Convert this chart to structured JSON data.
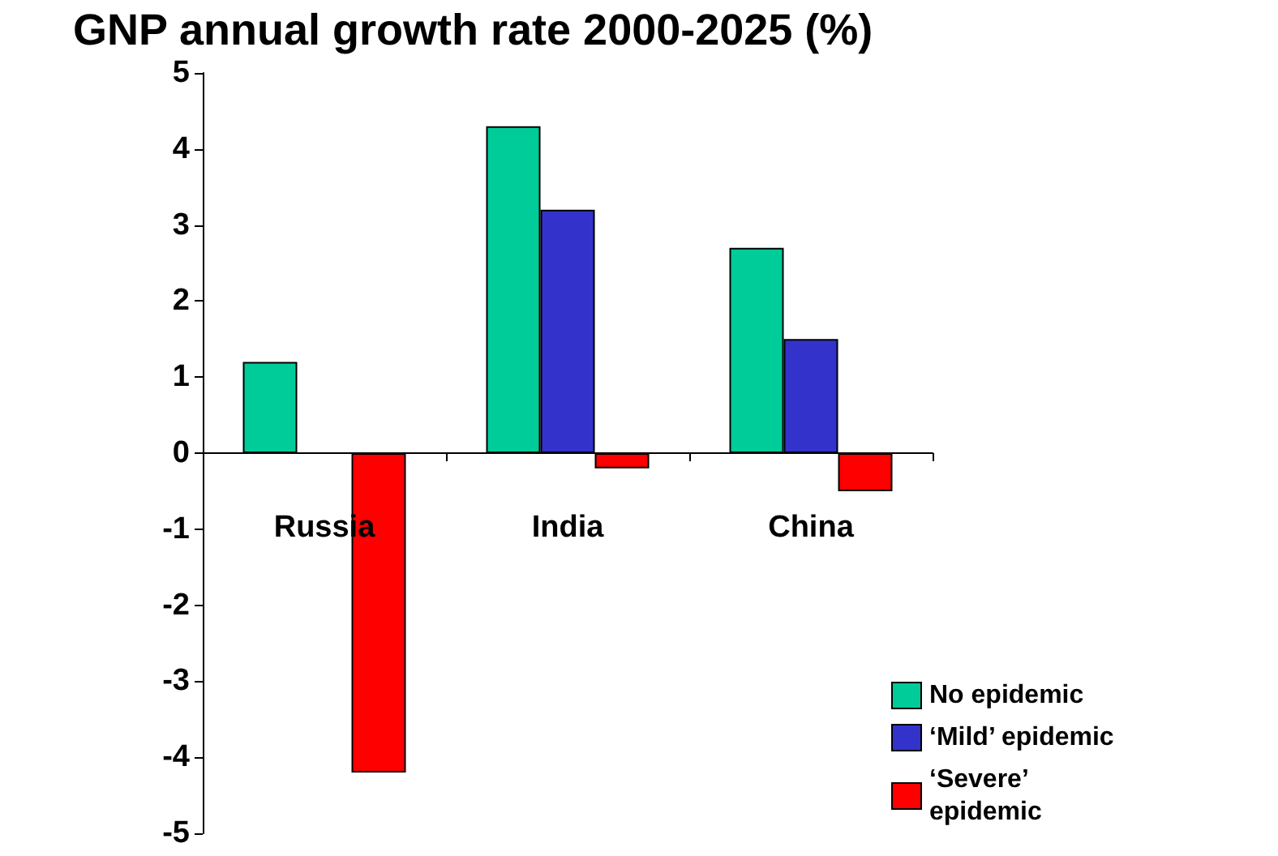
{
  "chart_data": {
    "type": "bar",
    "title": "GNP annual growth rate 2000-2025 (%)",
    "categories": [
      "Russia",
      "India",
      "China"
    ],
    "series": [
      {
        "name": "No epidemic",
        "color": "#00cc99",
        "values": [
          1.2,
          4.3,
          2.7
        ]
      },
      {
        "name": "‘Mild’ epidemic",
        "color": "#3333cc",
        "values": [
          null,
          3.2,
          1.5
        ]
      },
      {
        "name": "‘Severe’ epidemic",
        "color": "#ff0000",
        "values": [
          -4.2,
          -0.2,
          -0.5
        ]
      }
    ],
    "ylim": [
      -5,
      5
    ],
    "yticks": [
      -5,
      -4,
      -3,
      -2,
      -1,
      0,
      1,
      2,
      3,
      4,
      5
    ],
    "legend": "bottom right"
  }
}
